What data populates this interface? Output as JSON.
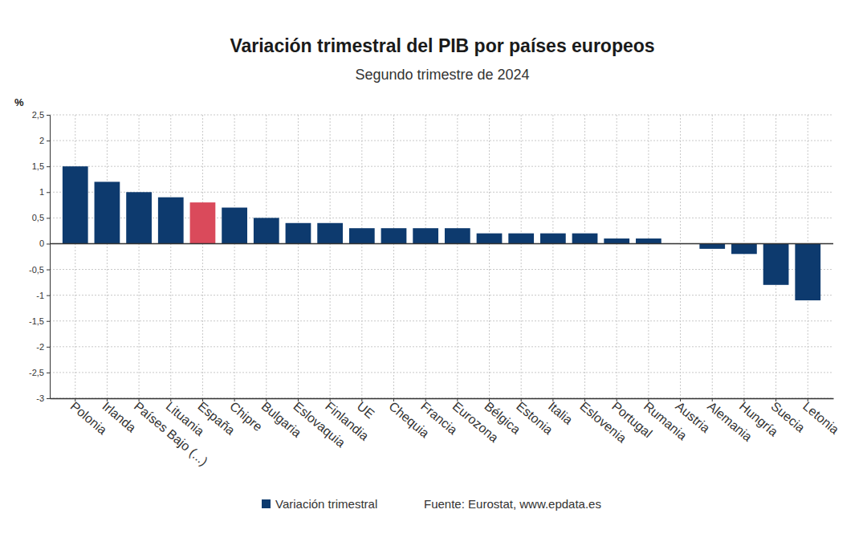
{
  "chart_data": {
    "type": "bar",
    "title": "Variación trimestral del PIB por países europeos",
    "subtitle": "Segundo trimestre de 2024",
    "y_label": "%",
    "source": "Fuente: Eurostat, www.epdata.es",
    "categories": [
      "Polonia",
      "Irlanda",
      "Países Bajo (...)",
      "Lituania",
      "España",
      "Chipre",
      "Bulgaria",
      "Eslovaquia",
      "Finlandia",
      "UE",
      "Chequia",
      "Francia",
      "Eurozona",
      "Bélgica",
      "Estonia",
      "Italia",
      "Eslovenia",
      "Portugal",
      "Rumania",
      "Austria",
      "Alemania",
      "Hungría",
      "Suecia",
      "Letonia"
    ],
    "series": [
      {
        "name": "Variación trimestral",
        "color": "#0d3a6e",
        "colors": [
          "#0d3a6e",
          "#0d3a6e",
          "#0d3a6e",
          "#0d3a6e",
          "#da4a5b",
          "#0d3a6e",
          "#0d3a6e",
          "#0d3a6e",
          "#0d3a6e",
          "#0d3a6e",
          "#0d3a6e",
          "#0d3a6e",
          "#0d3a6e",
          "#0d3a6e",
          "#0d3a6e",
          "#0d3a6e",
          "#0d3a6e",
          "#0d3a6e",
          "#0d3a6e",
          "#0d3a6e",
          "#0d3a6e",
          "#0d3a6e",
          "#0d3a6e",
          "#0d3a6e"
        ],
        "values": [
          1.5,
          1.2,
          1.0,
          0.9,
          0.8,
          0.7,
          0.5,
          0.4,
          0.4,
          0.3,
          0.3,
          0.3,
          0.3,
          0.2,
          0.2,
          0.2,
          0.2,
          0.1,
          0.1,
          0,
          -0.1,
          -0.2,
          -0.8,
          -1.1
        ]
      }
    ],
    "ylim": [
      -3,
      2.5
    ],
    "yticks": [
      -3,
      {
        "value": -2.5,
        "label": "-2,5"
      },
      -2,
      {
        "value": -1.5,
        "label": "-1,5"
      },
      -1,
      {
        "value": -0.5,
        "label": "-0,5"
      },
      0,
      {
        "value": 0.5,
        "label": "0,5"
      },
      1,
      {
        "value": 1.5,
        "label": "1,5"
      },
      2,
      {
        "value": 2.5,
        "label": "2,5"
      }
    ],
    "grid": true,
    "legend": "bottom"
  }
}
